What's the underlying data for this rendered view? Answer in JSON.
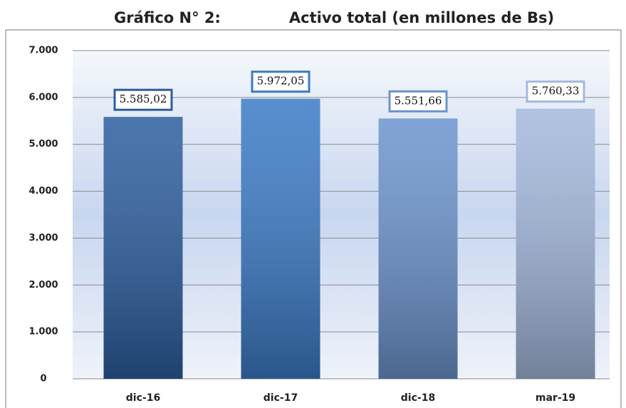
{
  "chart_data": {
    "type": "bar",
    "figure_label": "Gráfico N° 2:",
    "title": "Activo total (en millones de Bs)",
    "categories": [
      "dic-16",
      "dic-17",
      "dic-18",
      "mar-19"
    ],
    "values": [
      5585.02,
      5972.05,
      5551.66,
      5760.33
    ],
    "value_labels": [
      "5.585,02",
      "5.972,05",
      "5.551,66",
      "5.760,33"
    ],
    "colors": [
      "#2b5d9e",
      "#3a7ac6",
      "#6b93cd",
      "#a3b8dc"
    ],
    "ylim": [
      0,
      7000
    ],
    "yticks": [
      0,
      {
        "value": 1000,
        "label": "1.000"
      },
      {
        "value": 2000,
        "label": "2.000"
      },
      {
        "value": 3000,
        "label": "3.000"
      },
      {
        "value": 4000,
        "label": "4.000"
      },
      {
        "value": 5000,
        "label": "5.000"
      },
      {
        "value": 6000,
        "label": "6.000"
      },
      {
        "value": 7000,
        "label": "7.000"
      }
    ],
    "grid": true
  }
}
